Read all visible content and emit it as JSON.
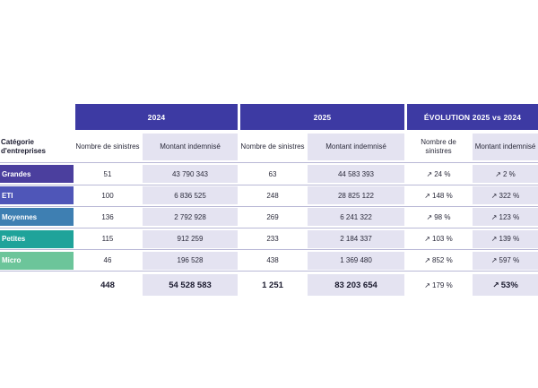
{
  "headers": {
    "y2024": "2024",
    "y2025": "2025",
    "evolution": "ÉVOLUTION 2025 vs 2024"
  },
  "subheaders": {
    "category": "Catégorie d'entreprises",
    "claims": "Nombre de sinistres",
    "amount": "Montant indemnisé"
  },
  "rows": [
    {
      "category": "Grandes",
      "color": "#4b3f9e",
      "c2024": "51",
      "m2024": "43 790 343",
      "c2025": "63",
      "m2025": "44 583 393",
      "evo_c": "24 %",
      "evo_m": "2 %"
    },
    {
      "category": "ETI",
      "color": "#4f56b8",
      "c2024": "100",
      "m2024": "6 836 525",
      "c2025": "248",
      "m2025": "28 825 122",
      "evo_c": "148 %",
      "evo_m": "322 %"
    },
    {
      "category": "Moyennes",
      "color": "#3e7fb2",
      "c2024": "136",
      "m2024": "2 792 928",
      "c2025": "269",
      "m2025": "6 241 322",
      "evo_c": "98 %",
      "evo_m": "123 %"
    },
    {
      "category": "Petites",
      "color": "#1fa39a",
      "c2024": "115",
      "m2024": "912 259",
      "c2025": "233",
      "m2025": "2 184 337",
      "evo_c": "103 %",
      "evo_m": "139 %"
    },
    {
      "category": "Micro",
      "color": "#6cc59a",
      "c2024": "46",
      "m2024": "196 528",
      "c2025": "438",
      "m2025": "1 369 480",
      "evo_c": "852 %",
      "evo_m": "597 %"
    }
  ],
  "totals": {
    "c2024": "448",
    "m2024": "54 528 583",
    "c2025": "1 251",
    "m2025": "83 203 654",
    "evo_c": "179 %",
    "evo_m": "53%"
  },
  "arrow_glyph": "↗"
}
